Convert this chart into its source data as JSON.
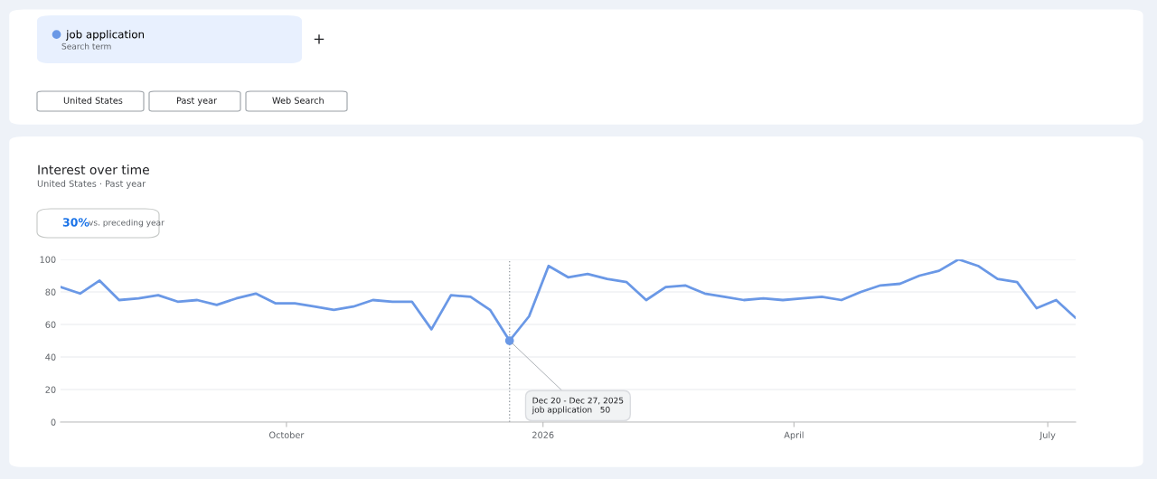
{
  "chart_data": {
    "type": "line",
    "title": "Interest over time",
    "subtitle": "United States · Past year",
    "annotations": [
      "Search term",
      "+",
      "United States",
      "Past year",
      "Web Search",
      "30%",
      "vs. preceding year",
      {
        "text": "Dec 20 - Dec 27, 2025\njob application   50",
        "x": "2025-12-20",
        "y": 50
      }
    ],
    "series": [
      {
        "name": "job application",
        "color": "#6a98e6",
        "x": [
          "2025-07-12",
          "2025-07-19",
          "2025-07-26",
          "2025-08-02",
          "2025-08-09",
          "2025-08-16",
          "2025-08-23",
          "2025-08-30",
          "2025-09-06",
          "2025-09-13",
          "2025-09-20",
          "2025-09-27",
          "2025-10-04",
          "2025-10-11",
          "2025-10-18",
          "2025-10-25",
          "2025-11-01",
          "2025-11-08",
          "2025-11-15",
          "2025-11-22",
          "2025-11-29",
          "2025-12-06",
          "2025-12-13",
          "2025-12-20",
          "2025-12-27",
          "2026-01-03",
          "2026-01-10",
          "2026-01-17",
          "2026-01-24",
          "2026-01-31",
          "2026-02-07",
          "2026-02-14",
          "2026-02-21",
          "2026-02-28",
          "2026-03-07",
          "2026-03-14",
          "2026-03-21",
          "2026-03-28",
          "2026-04-04",
          "2026-04-11",
          "2026-04-18",
          "2026-04-25",
          "2026-05-02",
          "2026-05-09",
          "2026-05-16",
          "2026-05-23",
          "2026-05-30",
          "2026-06-06",
          "2026-06-13",
          "2026-06-20",
          "2026-06-27",
          "2026-07-04",
          "2026-07-11"
        ],
        "values": [
          83,
          79,
          87,
          75,
          76,
          78,
          74,
          75,
          72,
          76,
          79,
          73,
          73,
          71,
          69,
          71,
          75,
          74,
          74,
          57,
          78,
          77,
          69,
          50,
          65,
          96,
          89,
          91,
          88,
          86,
          75,
          83,
          84,
          79,
          77,
          75,
          76,
          75,
          76,
          77,
          75,
          80,
          84,
          85,
          90,
          93,
          100,
          96,
          88,
          86,
          70,
          75,
          64
        ]
      }
    ],
    "xlim": [
      "2025-07-12",
      "2026-07-11"
    ],
    "xticks": [
      {
        "value": "2025-10-01",
        "label": "October"
      },
      {
        "value": "2026-01-01",
        "label": "2026"
      },
      {
        "value": "2026-04-01",
        "label": "April"
      },
      {
        "value": "2026-07-01",
        "label": "July"
      }
    ],
    "ylim": [
      0,
      100
    ],
    "yticks": [
      0,
      20,
      40,
      60,
      80,
      100
    ],
    "ref_lines": [
      {
        "axis": "x",
        "value": "2025-12-20",
        "label": null,
        "color": "#9aa0a6",
        "line_style": "dotted"
      }
    ],
    "grid": "y",
    "legend": "top left"
  }
}
